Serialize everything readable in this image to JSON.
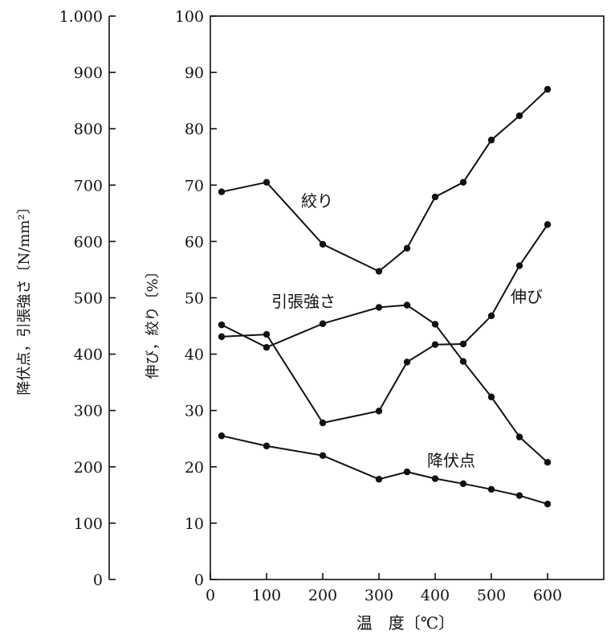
{
  "chart_data": {
    "type": "line",
    "title": "",
    "xlabel": "温　度〔℃〕",
    "ylabel_left": "降伏点，引張強さ〔N/mm²〕",
    "ylabel_right": "伸び，絞り〔%〕",
    "xlim": [
      0,
      700
    ],
    "ylim_left": [
      0,
      1000
    ],
    "ylim_right": [
      0,
      100
    ],
    "x_ticks": [
      0,
      100,
      200,
      300,
      400,
      500,
      600
    ],
    "x_tick_labels": [
      "0",
      "100",
      "200",
      "300",
      "400",
      "500",
      "600"
    ],
    "y_left_ticks": [
      0,
      100,
      200,
      300,
      400,
      500,
      600,
      700,
      800,
      900,
      1000
    ],
    "y_left_tick_labels": [
      "0",
      "100",
      "200",
      "300",
      "400",
      "500",
      "600",
      "700",
      "800",
      "900",
      "1.000"
    ],
    "y_right_ticks": [
      0,
      10,
      20,
      30,
      40,
      50,
      60,
      70,
      80,
      90,
      100
    ],
    "y_right_tick_labels": [
      "0",
      "10",
      "20",
      "30",
      "40",
      "50",
      "60",
      "70",
      "80",
      "90",
      "100"
    ],
    "grid": false,
    "series": [
      {
        "name": "絞り",
        "axis": "right",
        "x": [
          20,
          100,
          200,
          300,
          350,
          400,
          450,
          500,
          550,
          600
        ],
        "y": [
          68.8,
          70.5,
          59.5,
          54.7,
          58.8,
          67.9,
          70.5,
          78.0,
          82.3,
          87.0
        ]
      },
      {
        "name": "伸び",
        "axis": "right",
        "x": [
          20,
          100,
          200,
          300,
          350,
          400,
          450,
          500,
          550,
          600
        ],
        "y": [
          43.1,
          43.5,
          27.8,
          29.9,
          38.6,
          41.7,
          41.8,
          46.8,
          55.7,
          63.0
        ]
      },
      {
        "name": "引張強さ",
        "axis": "left",
        "x": [
          20,
          100,
          200,
          300,
          350,
          400,
          450,
          500,
          550,
          600
        ],
        "y": [
          452,
          412,
          454,
          483,
          487,
          453,
          387,
          324,
          253,
          208
        ]
      },
      {
        "name": "降伏点",
        "axis": "left",
        "x": [
          20,
          100,
          200,
          300,
          350,
          400,
          450,
          500,
          550,
          600
        ],
        "y": [
          255,
          237,
          220,
          178,
          191,
          179,
          170,
          160,
          149,
          134
        ]
      }
    ]
  }
}
